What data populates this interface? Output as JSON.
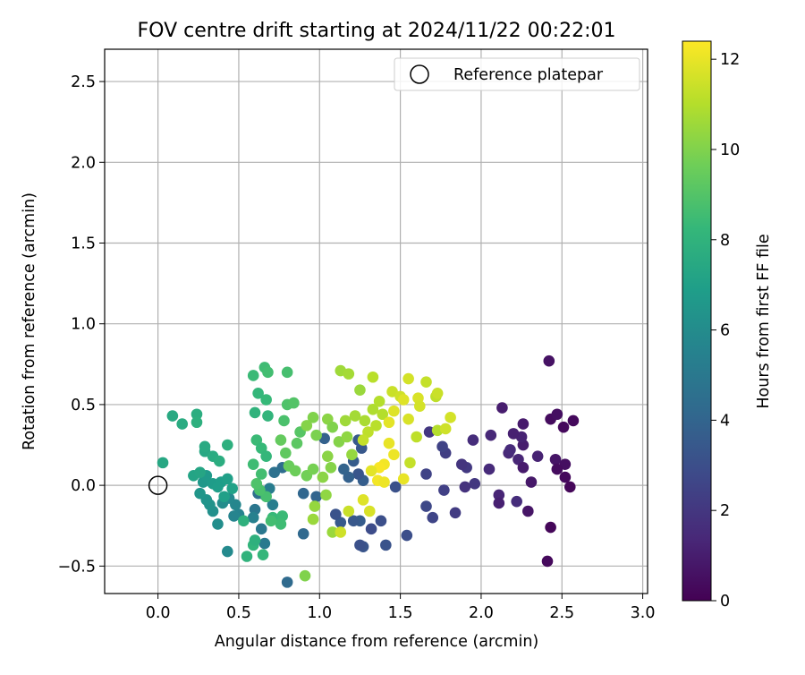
{
  "chart_data": {
    "type": "scatter",
    "title": "FOV centre drift starting at 2024/11/22 00:22:01",
    "xlabel": "Angular distance from reference (arcmin)",
    "ylabel": "Rotation from reference (arcmin)",
    "xlim": [
      -0.33,
      3.03
    ],
    "ylim": [
      -0.67,
      2.7
    ],
    "x_ticks": [
      0.0,
      0.5,
      1.0,
      1.5,
      2.0,
      2.5,
      3.0
    ],
    "x_tick_labels": [
      "0.0",
      "0.5",
      "1.0",
      "1.5",
      "2.0",
      "2.5",
      "3.0"
    ],
    "y_ticks": [
      -0.5,
      0.0,
      0.5,
      1.0,
      1.5,
      2.0,
      2.5
    ],
    "y_tick_labels": [
      "−0.5",
      "0.0",
      "0.5",
      "1.0",
      "1.5",
      "2.0",
      "2.5"
    ],
    "grid": true,
    "legend": {
      "placement": "top-right",
      "entries": [
        {
          "label": "Reference platepar",
          "marker": "open-circle"
        }
      ]
    },
    "reference_point": {
      "x": 0.0,
      "y": 0.0
    },
    "colorbar": {
      "label": "Hours from first FF file",
      "range": [
        0,
        12.4
      ],
      "ticks": [
        0,
        2,
        4,
        6,
        8,
        10,
        12
      ],
      "tick_labels": [
        "0",
        "2",
        "4",
        "6",
        "8",
        "10",
        "12"
      ],
      "colormap": "viridis",
      "colormap_stops": [
        "#440154",
        "#482878",
        "#3e4989",
        "#31688e",
        "#26828e",
        "#1f9e89",
        "#35b779",
        "#6ece58",
        "#b5de2b",
        "#fde725"
      ]
    },
    "series": [
      {
        "points": [
          [
            2.42,
            0.77,
            0.6
          ],
          [
            2.43,
            0.41,
            0.4
          ],
          [
            2.47,
            0.44,
            0.5
          ],
          [
            2.51,
            0.36,
            0.3
          ],
          [
            2.57,
            0.4,
            0.3
          ],
          [
            2.46,
            0.16,
            0.7
          ],
          [
            2.52,
            0.13,
            0.5
          ],
          [
            2.47,
            0.1,
            0.4
          ],
          [
            2.52,
            0.05,
            0.3
          ],
          [
            2.55,
            -0.01,
            0.2
          ],
          [
            2.43,
            -0.26,
            0.2
          ],
          [
            2.41,
            -0.47,
            0.3
          ],
          [
            2.31,
            0.02,
            0.8
          ],
          [
            2.29,
            -0.16,
            0.7
          ],
          [
            2.26,
            0.25,
            1.0
          ],
          [
            2.25,
            0.3,
            1.2
          ],
          [
            2.26,
            0.38,
            0.9
          ],
          [
            2.2,
            0.32,
            1.1
          ],
          [
            2.23,
            0.16,
            1.3
          ],
          [
            2.26,
            0.11,
            0.9
          ],
          [
            2.35,
            0.18,
            1.2
          ],
          [
            2.17,
            0.2,
            1.4
          ],
          [
            2.18,
            0.22,
            1.5
          ],
          [
            2.13,
            0.48,
            1.0
          ],
          [
            2.22,
            -0.1,
            1.6
          ],
          [
            2.11,
            -0.06,
            1.3
          ],
          [
            2.11,
            -0.11,
            1.1
          ],
          [
            2.05,
            0.1,
            1.5
          ],
          [
            2.06,
            0.31,
            1.4
          ],
          [
            1.95,
            0.28,
            1.6
          ],
          [
            1.96,
            0.01,
            2.0
          ],
          [
            1.9,
            -0.01,
            1.8
          ],
          [
            1.91,
            0.11,
            2.1
          ],
          [
            1.88,
            0.13,
            1.9
          ],
          [
            1.84,
            -0.17,
            2.2
          ],
          [
            1.78,
            0.2,
            2.3
          ],
          [
            1.76,
            0.24,
            2.5
          ],
          [
            1.77,
            -0.03,
            2.4
          ],
          [
            1.7,
            -0.2,
            2.6
          ],
          [
            1.66,
            -0.13,
            2.7
          ],
          [
            1.66,
            0.07,
            2.5
          ],
          [
            1.68,
            0.33,
            2.0
          ],
          [
            1.54,
            -0.31,
            3.0
          ],
          [
            1.47,
            -0.01,
            3.1
          ],
          [
            1.41,
            -0.37,
            3.2
          ],
          [
            1.38,
            -0.22,
            3.0
          ],
          [
            1.32,
            -0.27,
            2.9
          ],
          [
            1.27,
            -0.38,
            3.3
          ],
          [
            1.25,
            -0.37,
            3.1
          ],
          [
            1.25,
            -0.22,
            3.6
          ],
          [
            1.21,
            -0.22,
            3.4
          ],
          [
            1.13,
            -0.23,
            3.5
          ],
          [
            1.1,
            -0.18,
            3.2
          ],
          [
            1.27,
            0.03,
            3.7
          ],
          [
            1.24,
            0.07,
            3.3
          ],
          [
            1.18,
            0.05,
            3.8
          ],
          [
            1.15,
            0.1,
            3.9
          ],
          [
            1.21,
            0.15,
            3.6
          ],
          [
            1.26,
            0.23,
            3.4
          ],
          [
            1.24,
            0.28,
            3.5
          ],
          [
            1.03,
            0.29,
            3.8
          ],
          [
            0.98,
            -0.07,
            4.0
          ],
          [
            0.9,
            -0.05,
            4.1
          ],
          [
            0.9,
            -0.3,
            4.2
          ],
          [
            0.8,
            -0.6,
            4.3
          ],
          [
            0.77,
            0.11,
            4.4
          ],
          [
            0.72,
            0.08,
            4.6
          ],
          [
            0.66,
            -0.06,
            4.7
          ],
          [
            0.62,
            -0.05,
            4.5
          ],
          [
            0.6,
            -0.15,
            4.9
          ],
          [
            0.64,
            -0.27,
            5.0
          ],
          [
            0.66,
            -0.36,
            5.1
          ],
          [
            0.69,
            -0.02,
            5.2
          ],
          [
            0.71,
            -0.12,
            5.3
          ],
          [
            0.59,
            -0.2,
            5.4
          ],
          [
            0.5,
            -0.18,
            5.5
          ],
          [
            0.47,
            -0.19,
            5.6
          ],
          [
            0.48,
            -0.12,
            5.7
          ],
          [
            0.44,
            -0.08,
            5.8
          ],
          [
            0.43,
            -0.41,
            5.9
          ],
          [
            0.4,
            -0.11,
            6.0
          ],
          [
            0.37,
            -0.24,
            6.1
          ],
          [
            0.34,
            -0.16,
            6.2
          ],
          [
            0.32,
            -0.12,
            6.3
          ],
          [
            0.3,
            -0.09,
            6.4
          ],
          [
            0.26,
            -0.05,
            6.5
          ],
          [
            0.28,
            0.02,
            6.6
          ],
          [
            0.3,
            0.06,
            6.7
          ],
          [
            0.34,
            0.01,
            6.8
          ],
          [
            0.39,
            0.02,
            6.9
          ],
          [
            0.43,
            0.04,
            7.0
          ],
          [
            0.46,
            -0.02,
            7.1
          ],
          [
            0.41,
            -0.07,
            7.0
          ],
          [
            0.37,
            -0.01,
            6.9
          ],
          [
            0.22,
            0.06,
            7.2
          ],
          [
            0.26,
            0.08,
            7.3
          ],
          [
            0.29,
            0.21,
            7.4
          ],
          [
            0.29,
            0.24,
            7.5
          ],
          [
            0.34,
            0.18,
            7.6
          ],
          [
            0.38,
            0.15,
            7.7
          ],
          [
            0.43,
            0.25,
            7.8
          ],
          [
            0.03,
            0.14,
            7.4
          ],
          [
            0.09,
            0.43,
            7.5
          ],
          [
            0.15,
            0.38,
            7.6
          ],
          [
            0.24,
            0.44,
            7.7
          ],
          [
            0.24,
            0.39,
            7.8
          ],
          [
            0.53,
            -0.22,
            7.9
          ],
          [
            0.55,
            -0.44,
            8.0
          ],
          [
            0.59,
            -0.37,
            8.1
          ],
          [
            0.6,
            -0.34,
            7.9
          ],
          [
            0.65,
            -0.43,
            8.2
          ],
          [
            0.71,
            -0.2,
            8.3
          ],
          [
            0.77,
            -0.19,
            8.4
          ],
          [
            0.76,
            -0.24,
            8.5
          ],
          [
            0.7,
            -0.22,
            8.6
          ],
          [
            0.67,
            -0.07,
            8.7
          ],
          [
            0.63,
            -0.03,
            8.8
          ],
          [
            0.61,
            0.01,
            8.9
          ],
          [
            0.64,
            0.07,
            8.6
          ],
          [
            0.59,
            0.13,
            8.5
          ],
          [
            0.61,
            0.28,
            8.4
          ],
          [
            0.64,
            0.23,
            8.3
          ],
          [
            0.67,
            0.18,
            8.2
          ],
          [
            0.68,
            0.43,
            8.1
          ],
          [
            0.6,
            0.45,
            8.0
          ],
          [
            0.62,
            0.57,
            8.2
          ],
          [
            0.67,
            0.53,
            8.3
          ],
          [
            0.59,
            0.68,
            8.4
          ],
          [
            0.66,
            0.73,
            8.5
          ],
          [
            0.68,
            0.7,
            8.6
          ],
          [
            0.8,
            0.7,
            8.7
          ],
          [
            0.78,
            0.4,
            8.8
          ],
          [
            0.8,
            0.5,
            8.9
          ],
          [
            0.84,
            0.51,
            9.0
          ],
          [
            0.88,
            0.33,
            9.1
          ],
          [
            0.86,
            0.26,
            9.2
          ],
          [
            0.79,
            0.2,
            9.3
          ],
          [
            0.76,
            0.28,
            9.4
          ],
          [
            0.81,
            0.12,
            9.5
          ],
          [
            0.85,
            0.09,
            9.6
          ],
          [
            0.92,
            0.06,
            9.7
          ],
          [
            0.96,
            0.1,
            9.8
          ],
          [
            0.98,
            0.31,
            9.9
          ],
          [
            0.96,
            0.42,
            10.0
          ],
          [
            0.92,
            0.37,
            10.1
          ],
          [
            1.05,
            0.41,
            10.2
          ],
          [
            1.08,
            0.36,
            10.0
          ],
          [
            1.12,
            0.27,
            10.1
          ],
          [
            1.17,
            0.3,
            10.3
          ],
          [
            1.2,
            0.19,
            10.4
          ],
          [
            1.05,
            0.18,
            10.2
          ],
          [
            1.07,
            0.11,
            10.1
          ],
          [
            1.02,
            0.05,
            10.2
          ],
          [
            1.04,
            -0.06,
            10.3
          ],
          [
            0.97,
            -0.13,
            10.4
          ],
          [
            0.96,
            -0.21,
            10.5
          ],
          [
            0.91,
            -0.56,
            10.0
          ],
          [
            1.08,
            -0.29,
            10.5
          ],
          [
            1.13,
            0.71,
            10.6
          ],
          [
            1.18,
            0.69,
            10.7
          ],
          [
            1.25,
            0.59,
            10.5
          ],
          [
            1.16,
            0.4,
            10.6
          ],
          [
            1.22,
            0.43,
            10.7
          ],
          [
            1.28,
            0.4,
            10.8
          ],
          [
            1.33,
            0.47,
            10.9
          ],
          [
            1.39,
            0.44,
            11.0
          ],
          [
            1.35,
            0.37,
            11.1
          ],
          [
            1.3,
            0.33,
            11.2
          ],
          [
            1.27,
            0.28,
            11.3
          ],
          [
            1.37,
            0.52,
            11.0
          ],
          [
            1.33,
            0.67,
            11.1
          ],
          [
            1.45,
            0.58,
            11.4
          ],
          [
            1.5,
            0.55,
            11.5
          ],
          [
            1.55,
            0.66,
            11.6
          ],
          [
            1.61,
            0.54,
            11.7
          ],
          [
            1.66,
            0.64,
            11.3
          ],
          [
            1.72,
            0.55,
            11.2
          ],
          [
            1.73,
            0.57,
            11.4
          ],
          [
            1.62,
            0.49,
            11.6
          ],
          [
            1.55,
            0.41,
            11.7
          ],
          [
            1.46,
            0.46,
            11.8
          ],
          [
            1.43,
            0.39,
            11.9
          ],
          [
            1.43,
            0.26,
            12.0
          ],
          [
            1.46,
            0.19,
            12.1
          ],
          [
            1.4,
            0.13,
            12.2
          ],
          [
            1.37,
            0.11,
            12.3
          ],
          [
            1.36,
            0.03,
            12.2
          ],
          [
            1.4,
            0.02,
            12.1
          ],
          [
            1.52,
            0.04,
            12.0
          ],
          [
            1.32,
            0.09,
            11.9
          ],
          [
            1.27,
            -0.09,
            11.8
          ],
          [
            1.31,
            -0.16,
            11.7
          ],
          [
            1.13,
            -0.29,
            11.5
          ],
          [
            1.18,
            -0.16,
            11.4
          ],
          [
            1.56,
            0.14,
            11.3
          ],
          [
            1.6,
            0.3,
            11.2
          ],
          [
            1.73,
            0.34,
            11.0
          ],
          [
            1.78,
            0.35,
            11.5
          ],
          [
            1.81,
            0.42,
            11.6
          ],
          [
            1.52,
            0.53,
            11.8
          ]
        ]
      }
    ]
  }
}
